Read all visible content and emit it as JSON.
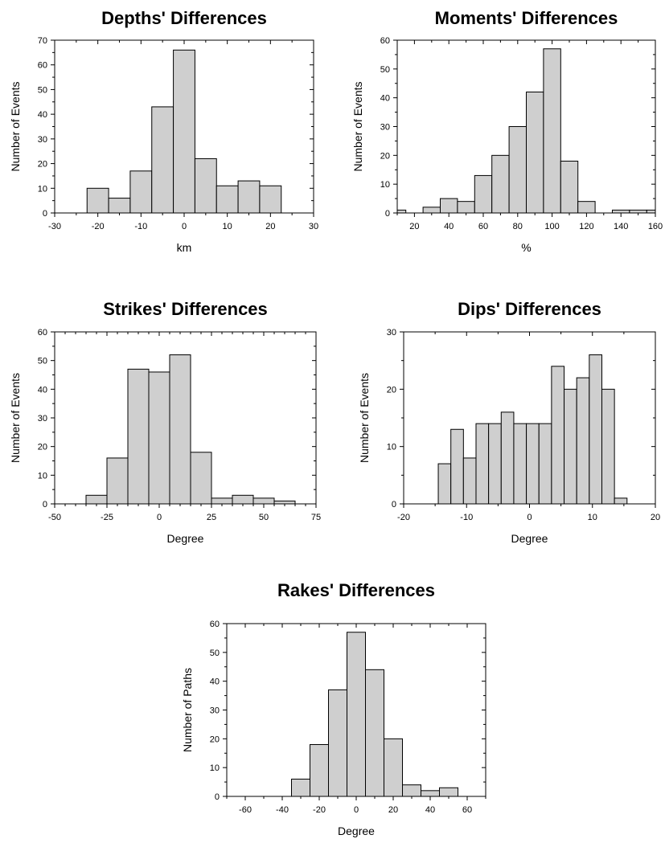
{
  "colors": {
    "bar_fill": "#cfcfcf",
    "frame": "#000000"
  },
  "chart_data": [
    {
      "type": "bar",
      "title": "Depths' Differences",
      "xlabel": "km",
      "ylabel": "Number of Events",
      "xlim": [
        -30,
        30
      ],
      "ylim": [
        0,
        70
      ],
      "xticks": [
        -30,
        -20,
        -10,
        0,
        10,
        20,
        30
      ],
      "yticks": [
        0,
        10,
        20,
        30,
        40,
        50,
        60,
        70
      ],
      "bins": [
        {
          "x0": -22.5,
          "x1": -17.5,
          "value": 10
        },
        {
          "x0": -17.5,
          "x1": -12.5,
          "value": 6
        },
        {
          "x0": -12.5,
          "x1": -7.5,
          "value": 17
        },
        {
          "x0": -7.5,
          "x1": -2.5,
          "value": 43
        },
        {
          "x0": -2.5,
          "x1": 2.5,
          "value": 66
        },
        {
          "x0": 2.5,
          "x1": 7.5,
          "value": 22
        },
        {
          "x0": 7.5,
          "x1": 12.5,
          "value": 11
        },
        {
          "x0": 12.5,
          "x1": 17.5,
          "value": 13
        },
        {
          "x0": 17.5,
          "x1": 22.5,
          "value": 11
        }
      ],
      "grid": false,
      "legend": "none"
    },
    {
      "type": "bar",
      "title": "Moments' Differences",
      "xlabel": "%",
      "ylabel": "Number of Events",
      "xlim": [
        10,
        160
      ],
      "ylim": [
        0,
        60
      ],
      "xticks": [
        20,
        40,
        60,
        80,
        100,
        120,
        140,
        160
      ],
      "yticks": [
        0,
        10,
        20,
        30,
        40,
        50,
        60
      ],
      "bins": [
        {
          "x0": 10,
          "x1": 15,
          "value": 1
        },
        {
          "x0": 25,
          "x1": 35,
          "value": 2
        },
        {
          "x0": 35,
          "x1": 45,
          "value": 5
        },
        {
          "x0": 45,
          "x1": 55,
          "value": 4
        },
        {
          "x0": 55,
          "x1": 65,
          "value": 13
        },
        {
          "x0": 65,
          "x1": 75,
          "value": 20
        },
        {
          "x0": 75,
          "x1": 85,
          "value": 30
        },
        {
          "x0": 85,
          "x1": 95,
          "value": 42
        },
        {
          "x0": 95,
          "x1": 105,
          "value": 57
        },
        {
          "x0": 105,
          "x1": 115,
          "value": 18
        },
        {
          "x0": 115,
          "x1": 125,
          "value": 4
        },
        {
          "x0": 135,
          "x1": 145,
          "value": 1
        },
        {
          "x0": 145,
          "x1": 155,
          "value": 1
        },
        {
          "x0": 155,
          "x1": 160,
          "value": 1
        }
      ],
      "grid": false,
      "legend": "none"
    },
    {
      "type": "bar",
      "title": "Strikes' Differences",
      "xlabel": "Degree",
      "ylabel": "Number of Events",
      "xlim": [
        -50,
        75
      ],
      "ylim": [
        0,
        60
      ],
      "xticks": [
        -50,
        -25,
        0,
        25,
        50,
        75
      ],
      "yticks": [
        0,
        10,
        20,
        30,
        40,
        50,
        60
      ],
      "bins": [
        {
          "x0": -35,
          "x1": -25,
          "value": 3
        },
        {
          "x0": -25,
          "x1": -15,
          "value": 16
        },
        {
          "x0": -15,
          "x1": -5,
          "value": 47
        },
        {
          "x0": -5,
          "x1": 5,
          "value": 46
        },
        {
          "x0": 5,
          "x1": 15,
          "value": 52
        },
        {
          "x0": 15,
          "x1": 25,
          "value": 18
        },
        {
          "x0": 25,
          "x1": 35,
          "value": 2
        },
        {
          "x0": 35,
          "x1": 45,
          "value": 3
        },
        {
          "x0": 45,
          "x1": 55,
          "value": 2
        },
        {
          "x0": 55,
          "x1": 65,
          "value": 1
        }
      ],
      "grid": false,
      "legend": "none"
    },
    {
      "type": "bar",
      "title": "Dips' Differences",
      "xlabel": "Degree",
      "ylabel": "Number of Events",
      "xlim": [
        -20,
        20
      ],
      "ylim": [
        0,
        30
      ],
      "xticks": [
        -20,
        -10,
        0,
        10,
        20
      ],
      "yticks": [
        0,
        10,
        20,
        30
      ],
      "bins": [
        {
          "x0": -14.5,
          "x1": -12.5,
          "value": 7
        },
        {
          "x0": -12.5,
          "x1": -10.5,
          "value": 13
        },
        {
          "x0": -10.5,
          "x1": -8.5,
          "value": 8
        },
        {
          "x0": -8.5,
          "x1": -6.5,
          "value": 14
        },
        {
          "x0": -6.5,
          "x1": -4.5,
          "value": 14
        },
        {
          "x0": -4.5,
          "x1": -2.5,
          "value": 16
        },
        {
          "x0": -2.5,
          "x1": -0.5,
          "value": 14
        },
        {
          "x0": -0.5,
          "x1": 1.5,
          "value": 14
        },
        {
          "x0": 1.5,
          "x1": 3.5,
          "value": 14
        },
        {
          "x0": 3.5,
          "x1": 5.5,
          "value": 24
        },
        {
          "x0": 5.5,
          "x1": 7.5,
          "value": 20
        },
        {
          "x0": 7.5,
          "x1": 9.5,
          "value": 22
        },
        {
          "x0": 9.5,
          "x1": 11.5,
          "value": 26
        },
        {
          "x0": 11.5,
          "x1": 13.5,
          "value": 20
        },
        {
          "x0": 13.5,
          "x1": 15.5,
          "value": 1
        }
      ],
      "grid": false,
      "legend": "none"
    },
    {
      "type": "bar",
      "title": "Rakes' Differences",
      "xlabel": "Degree",
      "ylabel": "Number of Paths",
      "xlim": [
        -70,
        70
      ],
      "ylim": [
        0,
        60
      ],
      "xticks": [
        -60,
        -40,
        -20,
        0,
        20,
        40,
        60
      ],
      "yticks": [
        0,
        10,
        20,
        30,
        40,
        50,
        60
      ],
      "bins": [
        {
          "x0": -35,
          "x1": -25,
          "value": 6
        },
        {
          "x0": -25,
          "x1": -15,
          "value": 18
        },
        {
          "x0": -15,
          "x1": -5,
          "value": 37
        },
        {
          "x0": -5,
          "x1": 5,
          "value": 57
        },
        {
          "x0": 5,
          "x1": 15,
          "value": 44
        },
        {
          "x0": 15,
          "x1": 25,
          "value": 20
        },
        {
          "x0": 25,
          "x1": 35,
          "value": 4
        },
        {
          "x0": 35,
          "x1": 45,
          "value": 2
        },
        {
          "x0": 45,
          "x1": 55,
          "value": 3
        }
      ],
      "grid": false,
      "legend": "none"
    }
  ]
}
